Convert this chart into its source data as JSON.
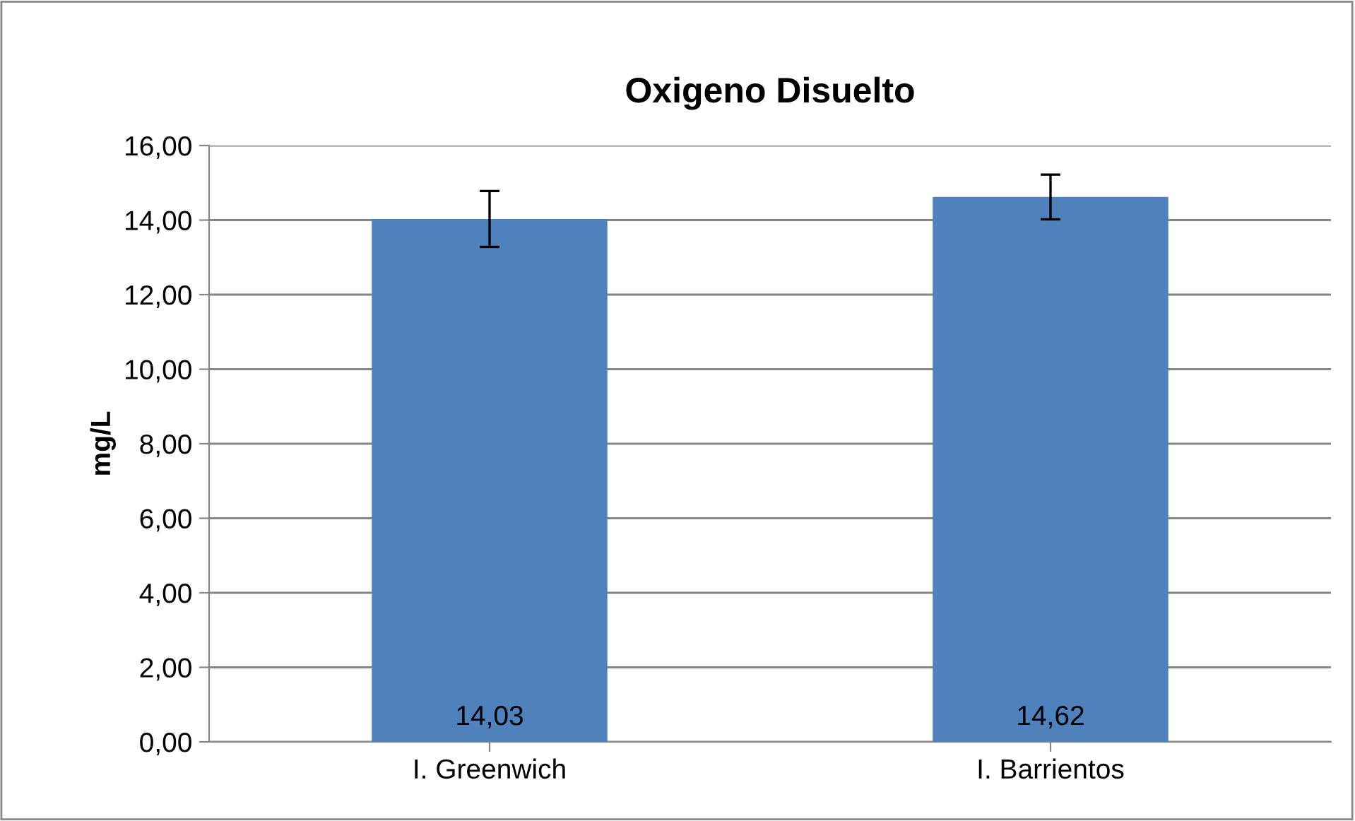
{
  "chart_data": {
    "type": "bar",
    "title": "Oxigeno Disuelto",
    "ylabel": "mg/L",
    "categories": [
      "I. Greenwich",
      "I. Barrientos"
    ],
    "series": [
      {
        "color": "#4f81bd",
        "values": [
          14.03,
          14.62
        ],
        "errors": [
          0.75,
          0.6
        ],
        "value_labels": [
          "14,03",
          "14,62"
        ]
      }
    ],
    "ylim": [
      0,
      16
    ],
    "yticks": [
      {
        "value": 0,
        "label": "0,00"
      },
      {
        "value": 2,
        "label": "2,00"
      },
      {
        "value": 4,
        "label": "4,00"
      },
      {
        "value": 6,
        "label": "6,00"
      },
      {
        "value": 8,
        "label": "8,00"
      },
      {
        "value": 10,
        "label": "10,00"
      },
      {
        "value": 12,
        "label": "12,00"
      },
      {
        "value": 14,
        "label": "14,00"
      },
      {
        "value": 16,
        "label": "16,00"
      }
    ],
    "grid": "y"
  }
}
